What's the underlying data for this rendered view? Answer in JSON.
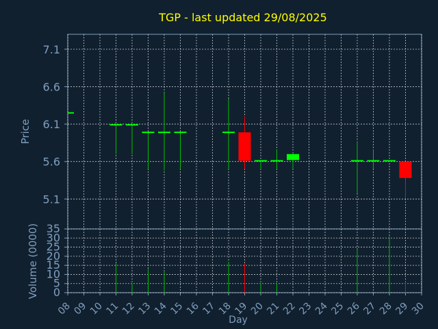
{
  "chart_data": {
    "type": "candlestick",
    "title": "TGP - last updated 29/08/2025",
    "price_axis": {
      "ylabel": "Price",
      "ylim": [
        4.7,
        7.3
      ],
      "ticks": [
        5.1,
        5.6,
        6.1,
        6.6,
        7.1
      ],
      "tick_labels": [
        "5.1",
        "5.6",
        "6.1",
        "6.6",
        "7.1"
      ]
    },
    "volume_axis": {
      "ylabel": "Volume (0000)",
      "ylim": [
        0,
        35
      ],
      "ticks": [
        0,
        5,
        10,
        15,
        20,
        25,
        30,
        35
      ],
      "tick_labels": [
        "0",
        "5",
        "10",
        "15",
        "20",
        "25",
        "30",
        "35"
      ]
    },
    "x_axis": {
      "xlabel": "Day",
      "xlim": [
        8,
        30
      ],
      "ticks": [
        8,
        9,
        10,
        11,
        12,
        13,
        14,
        15,
        16,
        17,
        18,
        19,
        20,
        21,
        22,
        23,
        24,
        25,
        26,
        27,
        28,
        29,
        30
      ],
      "tick_labels": [
        "08",
        "09",
        "10",
        "11",
        "12",
        "13",
        "14",
        "15",
        "16",
        "17",
        "18",
        "19",
        "20",
        "21",
        "22",
        "23",
        "24",
        "25",
        "26",
        "27",
        "28",
        "29",
        "30"
      ]
    },
    "grid": true,
    "colors": {
      "background": "#11202f",
      "title": "#ffff00",
      "axis_text": "#7f9fbf",
      "up": "#00ff00",
      "down": "#ff0000",
      "neutral_wick": "#00c000",
      "grid": "#ffffff"
    },
    "candles": [
      {
        "day": 8,
        "open": 6.25,
        "high": 6.25,
        "low": 6.25,
        "close": 6.25,
        "volume": 0
      },
      {
        "day": 11,
        "open": 6.09,
        "high": 6.09,
        "low": 5.7,
        "close": 6.09,
        "volume": 16
      },
      {
        "day": 12,
        "open": 6.09,
        "high": 6.09,
        "low": 5.7,
        "close": 6.09,
        "volume": 5
      },
      {
        "day": 13,
        "open": 5.99,
        "high": 5.99,
        "low": 5.5,
        "close": 5.99,
        "volume": 13
      },
      {
        "day": 14,
        "open": 5.99,
        "high": 6.52,
        "low": 5.48,
        "close": 5.99,
        "volume": 12
      },
      {
        "day": 15,
        "open": 5.99,
        "high": 5.99,
        "low": 5.5,
        "close": 5.99,
        "volume": 0
      },
      {
        "day": 18,
        "open": 5.99,
        "high": 6.44,
        "low": 5.5,
        "close": 5.99,
        "volume": 17
      },
      {
        "day": 19,
        "open": 5.99,
        "high": 6.2,
        "low": 5.5,
        "close": 5.61,
        "volume": 16
      },
      {
        "day": 20,
        "open": 5.61,
        "high": 5.61,
        "low": 5.5,
        "close": 5.61,
        "volume": 5
      },
      {
        "day": 21,
        "open": 5.61,
        "high": 5.76,
        "low": 5.5,
        "close": 5.61,
        "volume": 5
      },
      {
        "day": 22,
        "open": 5.62,
        "high": 5.7,
        "low": 5.5,
        "close": 5.7,
        "volume": 0
      },
      {
        "day": 26,
        "open": 5.61,
        "high": 5.87,
        "low": 5.18,
        "close": 5.61,
        "volume": 24
      },
      {
        "day": 27,
        "open": 5.61,
        "high": 5.76,
        "low": 5.5,
        "close": 5.61,
        "volume": 0
      },
      {
        "day": 28,
        "open": 5.61,
        "high": 5.61,
        "low": 5.61,
        "close": 5.61,
        "volume": 31
      },
      {
        "day": 29,
        "open": 5.6,
        "high": 5.6,
        "low": 5.1,
        "close": 5.38,
        "volume": 6
      }
    ]
  }
}
